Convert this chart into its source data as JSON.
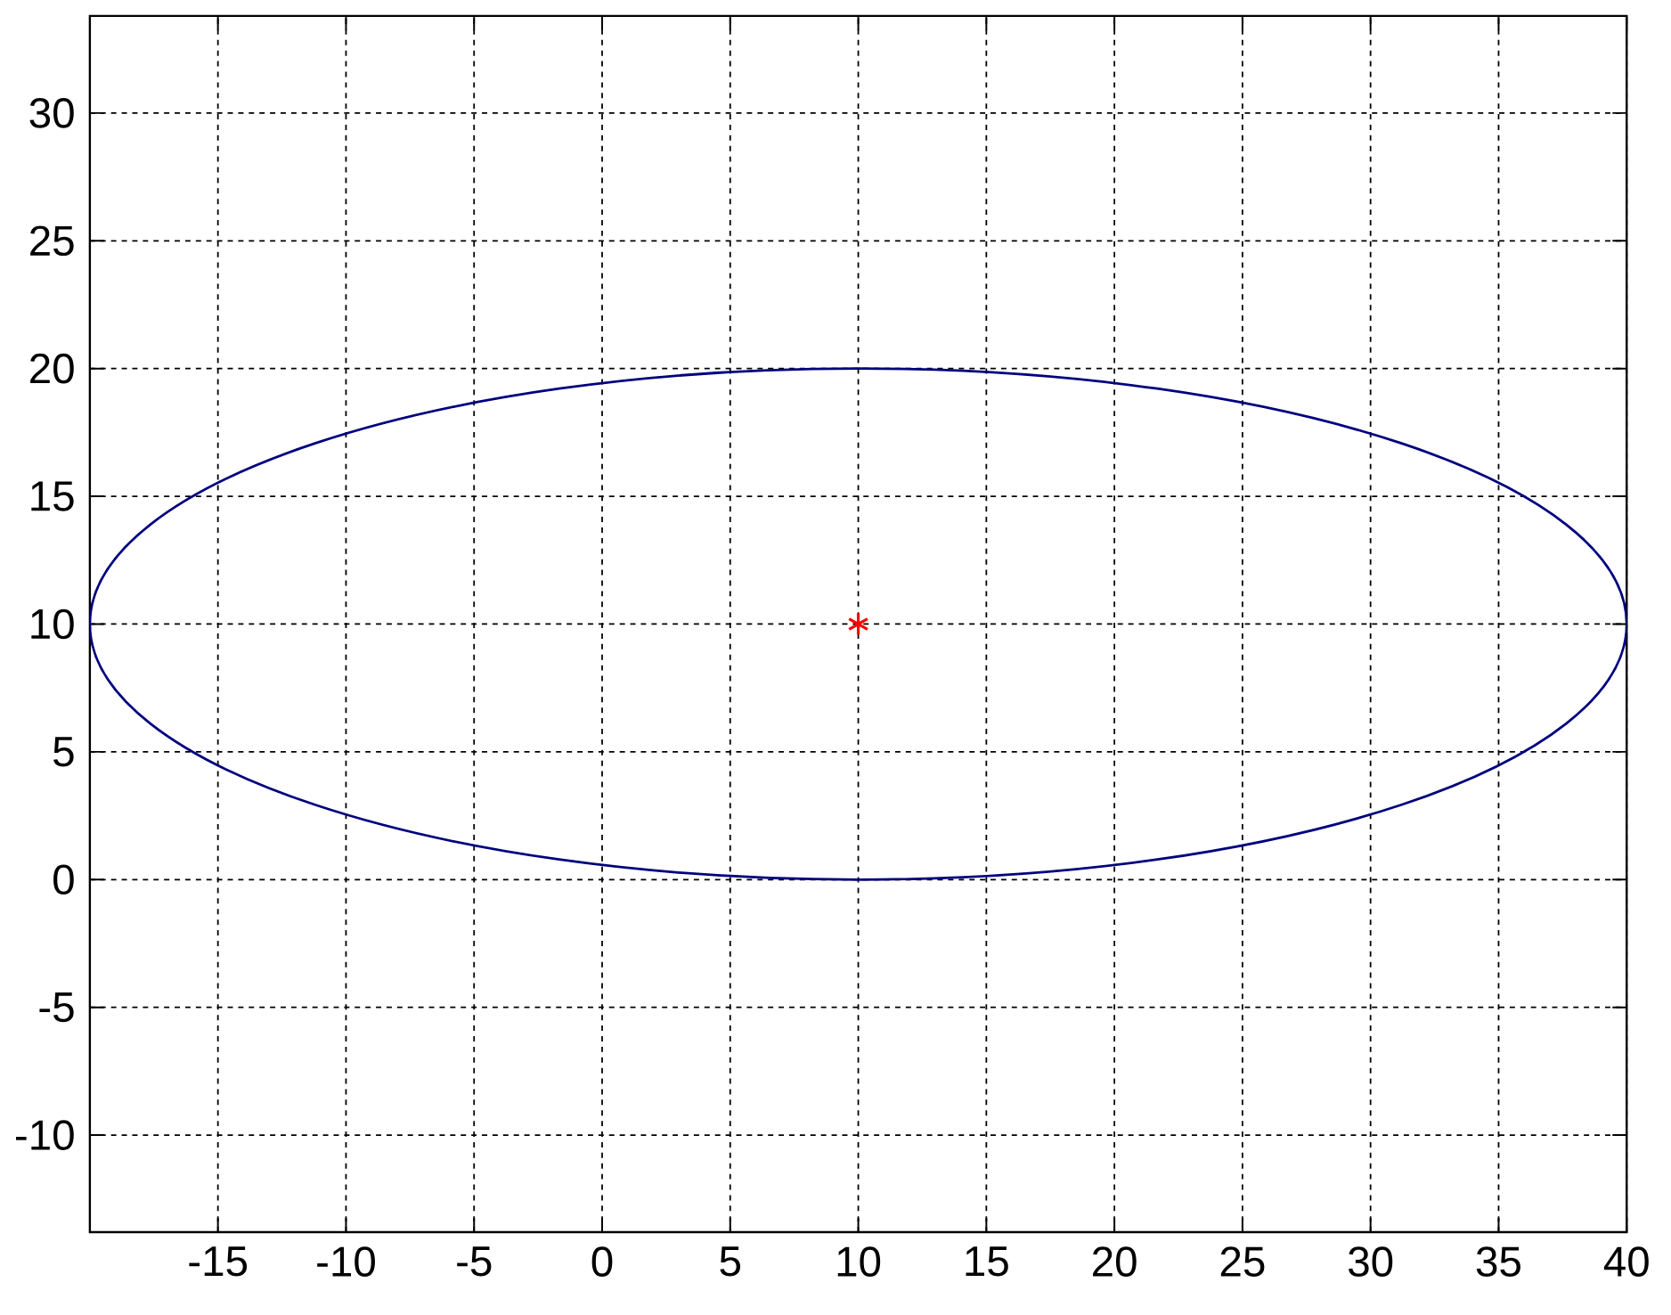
{
  "chart_data": {
    "type": "scatter",
    "xlim": [
      -20,
      40
    ],
    "ylim": [
      -13.8,
      33.8
    ],
    "xticks": [
      -15,
      -10,
      -5,
      0,
      5,
      10,
      15,
      20,
      25,
      30,
      35,
      40
    ],
    "yticks": [
      -10,
      -5,
      0,
      5,
      10,
      15,
      20,
      25,
      30
    ],
    "grid": true,
    "series": [
      {
        "color": "#ff0000",
        "marker": "cross",
        "x": [
          10
        ],
        "values": [
          10
        ]
      }
    ]
  }
}
